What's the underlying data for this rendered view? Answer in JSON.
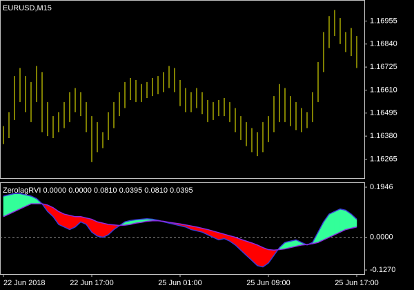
{
  "chart_data": [
    {
      "type": "ohlc",
      "title": "EURUSD,M15",
      "color": "#ffff00",
      "high": [
        1.1643,
        1.165,
        1.1668,
        1.1672,
        1.1668,
        1.1665,
        1.1673,
        1.167,
        1.1655,
        1.1648,
        1.165,
        1.1655,
        1.166,
        1.1662,
        1.166,
        1.1655,
        1.1648,
        1.1645,
        1.164,
        1.165,
        1.1655,
        1.166,
        1.1665,
        1.1667,
        1.1666,
        1.1664,
        1.1665,
        1.1667,
        1.1668,
        1.167,
        1.1673,
        1.1672,
        1.1666,
        1.1662,
        1.166,
        1.1662,
        1.166,
        1.1656,
        1.1655,
        1.1656,
        1.1657,
        1.1655,
        1.1652,
        1.1648,
        1.1645,
        1.1642,
        1.164,
        1.1645,
        1.1648,
        1.1658,
        1.1664,
        1.1662,
        1.1658,
        1.1655,
        1.1652,
        1.165,
        1.166,
        1.1675,
        1.169,
        1.1698,
        1.1701,
        1.1697,
        1.169,
        1.1692,
        1.1688
      ],
      "low": [
        1.1634,
        1.1637,
        1.1646,
        1.1655,
        1.165,
        1.1645,
        1.1655,
        1.164,
        1.1638,
        1.1637,
        1.164,
        1.1642,
        1.1645,
        1.165,
        1.1648,
        1.164,
        1.1625,
        1.163,
        1.1632,
        1.1636,
        1.1642,
        1.1648,
        1.1652,
        1.1656,
        1.1655,
        1.1655,
        1.1657,
        1.1658,
        1.1659,
        1.166,
        1.1662,
        1.166,
        1.1653,
        1.165,
        1.165,
        1.1652,
        1.1649,
        1.1645,
        1.1646,
        1.1648,
        1.1648,
        1.1645,
        1.164,
        1.1636,
        1.1633,
        1.163,
        1.1628,
        1.163,
        1.1635,
        1.164,
        1.1645,
        1.1645,
        1.1643,
        1.1641,
        1.164,
        1.1642,
        1.1645,
        1.1655,
        1.167,
        1.1682,
        1.1688,
        1.1684,
        1.168,
        1.1678,
        1.1672
      ],
      "xlim": [
        -0.625,
        65.375
      ],
      "ylim": [
        1.1617,
        1.1706
      ],
      "yticks": [
        1.16955,
        {
          "value": 1.1684,
          "label": "1.16840"
        },
        1.16725,
        {
          "value": 1.1661,
          "label": "1.16610"
        },
        1.16495,
        {
          "value": 1.1638,
          "label": "1.16380"
        },
        1.16265
      ]
    },
    {
      "type": "oscillator",
      "title": "ZerolagRVI 0.0000 0.0000 0.0810 0.0395 0.0810 0.0395",
      "up_color": "#33ff99",
      "down_color": "#ff0000",
      "zero_line": true,
      "series": [
        {
          "color": "#3a3ad8",
          "values": [
            0.16,
            0.165,
            0.17,
            0.17,
            0.165,
            0.16,
            0.15,
            0.13,
            0.1,
            0.08,
            0.05,
            0.04,
            0.03,
            0.04,
            0.06,
            0.05,
            0.02,
            0.005,
            0.0,
            0.01,
            0.03,
            0.045,
            0.06,
            0.065,
            0.068,
            0.07,
            0.072,
            0.07,
            0.066,
            0.06,
            0.055,
            0.05,
            0.045,
            0.04,
            0.03,
            0.025,
            0.02,
            0.01,
            0.0,
            -0.01,
            -0.005,
            -0.015,
            -0.03,
            -0.05,
            -0.07,
            -0.09,
            -0.11,
            -0.115,
            -0.1,
            -0.07,
            -0.04,
            -0.02,
            -0.015,
            -0.01,
            -0.02,
            -0.03,
            -0.02,
            0.02,
            0.06,
            0.09,
            0.1,
            0.11,
            0.105,
            0.09,
            0.07
          ]
        },
        {
          "color": "#8a2be2",
          "values": [
            0.08,
            0.09,
            0.1,
            0.11,
            0.12,
            0.13,
            0.13,
            0.13,
            0.125,
            0.115,
            0.1,
            0.09,
            0.085,
            0.08,
            0.08,
            0.075,
            0.07,
            0.06,
            0.055,
            0.05,
            0.048,
            0.046,
            0.047,
            0.05,
            0.055,
            0.058,
            0.062,
            0.064,
            0.064,
            0.062,
            0.058,
            0.055,
            0.052,
            0.048,
            0.044,
            0.04,
            0.035,
            0.03,
            0.024,
            0.018,
            0.012,
            0.006,
            0.0,
            -0.008,
            -0.015,
            -0.022,
            -0.03,
            -0.04,
            -0.048,
            -0.05,
            -0.048,
            -0.045,
            -0.04,
            -0.035,
            -0.03,
            -0.028,
            -0.025,
            -0.02,
            -0.01,
            0.0,
            0.01,
            0.02,
            0.03,
            0.035,
            0.04
          ]
        }
      ],
      "xlim": [
        -0.625,
        65.375
      ],
      "xticks": [
        {
          "value": 0,
          "label": "22 Jun 2018"
        },
        {
          "value": 16,
          "label": "22 Jun 17:00"
        },
        {
          "value": 32,
          "label": "25 Jun 01:00"
        },
        {
          "value": 48,
          "label": "25 Jun 09:00"
        },
        {
          "value": 64,
          "label": "25 Jun 17:00"
        }
      ],
      "ylim": [
        -0.143,
        0.2135
      ],
      "yticks": [
        0.1946,
        {
          "value": 0,
          "label": "0.0000"
        },
        {
          "value": -0.127,
          "label": "-0.1270"
        }
      ]
    }
  ]
}
